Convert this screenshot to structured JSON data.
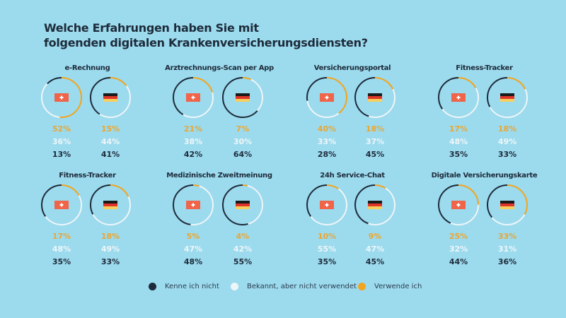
{
  "title_lines": [
    "Welche Erfahrungen haben Sie mit",
    "folgenden digitalen Krankenversicherungsdiensten?"
  ],
  "colors": {
    "background": "#9cdaed",
    "kenne_nicht": "#1d2b3a",
    "bekannt": "#eef6f8",
    "verwende": "#f2a51f",
    "flag_ch": "#f0644a"
  },
  "legend": [
    {
      "label": "Kenne ich nicht",
      "color": "#1d2b3a"
    },
    {
      "label": "Bekannt, aber nicht verwendet",
      "color": "#eef6f8"
    },
    {
      "label": "Verwende ich",
      "color": "#f2a51f"
    }
  ],
  "chart_data": {
    "type": "pie",
    "variant": "donut",
    "series_order": [
      "Verwende ich",
      "Bekannt, aber nicht verwendet",
      "Kenne ich nicht"
    ],
    "groups": [
      {
        "title": "e-Rechnung",
        "CH": [
          52,
          36,
          13
        ],
        "DE": [
          15,
          44,
          41
        ]
      },
      {
        "title": "Arztrechnungs-Scan per App",
        "CH": [
          21,
          38,
          42
        ],
        "DE": [
          7,
          30,
          64
        ]
      },
      {
        "title": "Versicherungsportal",
        "CH": [
          40,
          33,
          28
        ],
        "DE": [
          18,
          37,
          45
        ]
      },
      {
        "title": "Fitness-Tracker",
        "CH": [
          17,
          48,
          35
        ],
        "DE": [
          18,
          49,
          33
        ]
      },
      {
        "title": "Fitness-Tracker",
        "CH": [
          17,
          48,
          35
        ],
        "DE": [
          18,
          49,
          33
        ]
      },
      {
        "title": "Medizinische Zweitmeinung",
        "CH": [
          5,
          47,
          48
        ],
        "DE": [
          4,
          42,
          55
        ]
      },
      {
        "title": "24h Service-Chat",
        "CH": [
          10,
          55,
          35
        ],
        "DE": [
          9,
          47,
          45
        ]
      },
      {
        "title": "Digitale Versicherungskarte",
        "CH": [
          25,
          32,
          44
        ],
        "DE": [
          33,
          31,
          36
        ]
      }
    ]
  }
}
